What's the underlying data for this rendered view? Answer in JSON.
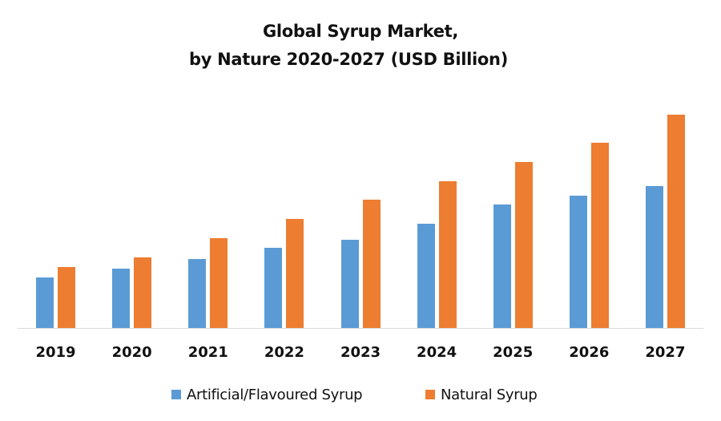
{
  "chart_data": {
    "type": "bar",
    "title": "Global Syrup Market,",
    "subtitle": "by Nature 2020-2027 (USD Billion)",
    "title_lines": [
      "Global Syrup Market,",
      "by Nature 2020-2027 (USD Billion)"
    ],
    "xlabel": "",
    "ylabel": "",
    "categories": [
      "2019",
      "2020",
      "2021",
      "2022",
      "2023",
      "2024",
      "2025",
      "2026",
      "2027"
    ],
    "series": [
      {
        "name": "Artificial/Flavoured Syrup",
        "color": "#5b9bd5",
        "values": [
          63,
          74,
          86,
          100,
          110,
          130,
          154,
          165,
          177
        ]
      },
      {
        "name": "Natural Syrup",
        "color": "#ed7d31",
        "values": [
          76,
          88,
          112,
          136,
          160,
          183,
          207,
          231,
          266
        ]
      }
    ],
    "value_note": "No y-axis shown; values are relative bar heights (pixels) as read from the figure",
    "ylim": [
      0,
      300
    ],
    "grid": false,
    "legend_position": "bottom"
  },
  "axis": {
    "color": "#d9d9d9"
  }
}
